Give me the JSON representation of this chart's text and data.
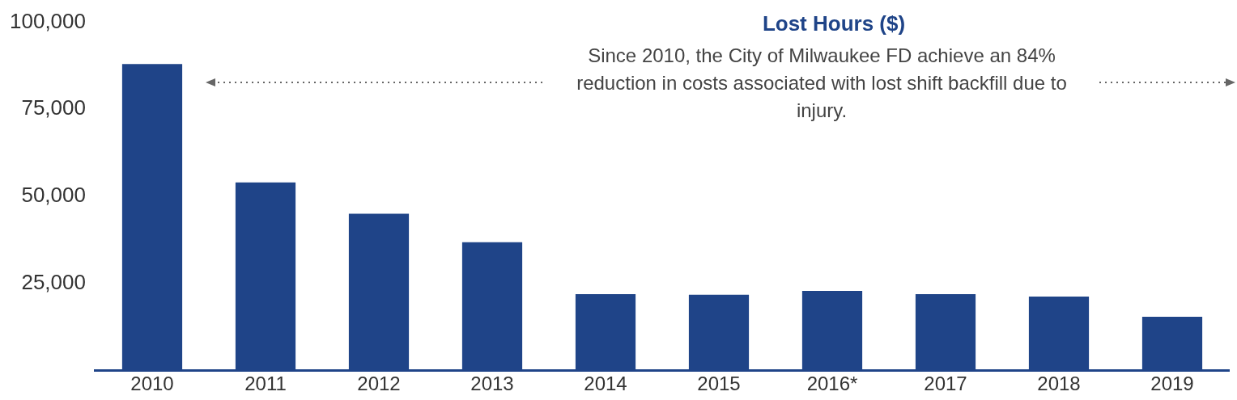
{
  "chart_data": {
    "type": "bar",
    "title": "Lost Hours ($)",
    "annotations": [
      "Since 2010, the City of Milwaukee FD achieve an 84% reduction in costs associated with lost shift backfill due to injury."
    ],
    "categories": [
      "2010",
      "2011",
      "2012",
      "2013",
      "2014",
      "2015",
      "2016*",
      "2017",
      "2018",
      "2019"
    ],
    "values": [
      88000,
      54000,
      45000,
      36800,
      21900,
      21700,
      22800,
      21900,
      21200,
      15400
    ],
    "color": "#1f4488",
    "ylim": [
      0,
      100000
    ],
    "yticks": [
      {
        "value": 25000,
        "label": "25,000"
      },
      {
        "value": 50000,
        "label": "50,000"
      },
      {
        "value": 75000,
        "label": "75,000"
      },
      {
        "value": 100000,
        "label": "100,000"
      }
    ],
    "grid": false,
    "legend": false
  }
}
